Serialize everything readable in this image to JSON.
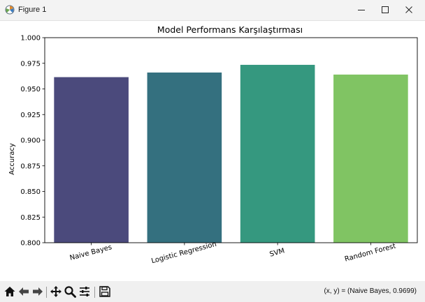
{
  "window": {
    "title": "Figure 1",
    "minimize_glyph": "–",
    "maximize_glyph": "□",
    "close_glyph": "✕"
  },
  "toolbar": {
    "icons": [
      "home-icon",
      "back-icon",
      "forward-icon",
      "pan-icon",
      "zoom-icon",
      "configure-subplots-icon",
      "save-icon"
    ],
    "coords_text": "(x, y) = (Naive Bayes, 0.9699)"
  },
  "chart_data": {
    "type": "bar",
    "title": "Model Performans Karşılaştırması",
    "xlabel": "",
    "ylabel": "Accuracy",
    "categories": [
      "Naive Bayes",
      "Logistic Regression",
      "SVM",
      "Random Forest"
    ],
    "values": [
      0.9615,
      0.966,
      0.9735,
      0.964
    ],
    "colors": [
      "#4b4a7c",
      "#34707f",
      "#35987f",
      "#80c463"
    ],
    "ylim": [
      0.8,
      1.0
    ],
    "yticks": [
      "0.800",
      "0.825",
      "0.850",
      "0.875",
      "0.900",
      "0.925",
      "0.950",
      "0.975",
      "1.000"
    ],
    "grid": false
  }
}
